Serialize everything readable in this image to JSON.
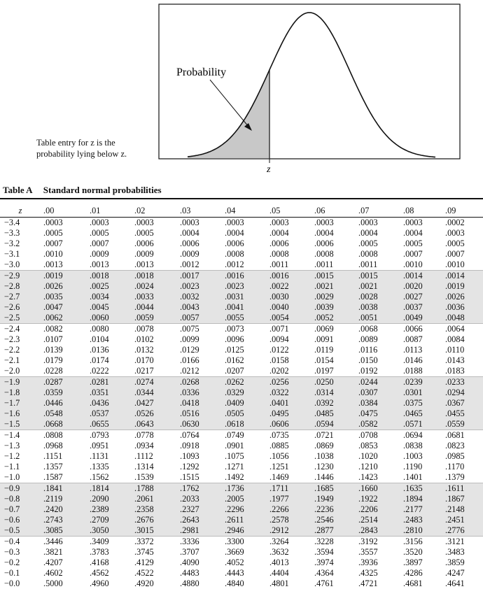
{
  "figure": {
    "probability_label": "Probability",
    "z_label": "z",
    "entry_note_line1": "Table entry for z is the",
    "entry_note_line2": "probability lying below z."
  },
  "table": {
    "number": "Table A",
    "title": "Standard normal probabilities",
    "row_header": "z",
    "columns": [
      ".00",
      ".01",
      ".02",
      ".03",
      ".04",
      ".05",
      ".06",
      ".07",
      ".08",
      ".09"
    ],
    "rows": [
      {
        "z": "−3.4",
        "v": [
          ".0003",
          ".0003",
          ".0003",
          ".0003",
          ".0003",
          ".0003",
          ".0003",
          ".0003",
          ".0003",
          ".0002"
        ]
      },
      {
        "z": "−3.3",
        "v": [
          ".0005",
          ".0005",
          ".0005",
          ".0004",
          ".0004",
          ".0004",
          ".0004",
          ".0004",
          ".0004",
          ".0003"
        ]
      },
      {
        "z": "−3.2",
        "v": [
          ".0007",
          ".0007",
          ".0006",
          ".0006",
          ".0006",
          ".0006",
          ".0006",
          ".0005",
          ".0005",
          ".0005"
        ]
      },
      {
        "z": "−3.1",
        "v": [
          ".0010",
          ".0009",
          ".0009",
          ".0009",
          ".0008",
          ".0008",
          ".0008",
          ".0008",
          ".0007",
          ".0007"
        ]
      },
      {
        "z": "−3.0",
        "v": [
          ".0013",
          ".0013",
          ".0013",
          ".0012",
          ".0012",
          ".0011",
          ".0011",
          ".0011",
          ".0010",
          ".0010"
        ]
      },
      {
        "z": "−2.9",
        "v": [
          ".0019",
          ".0018",
          ".0018",
          ".0017",
          ".0016",
          ".0016",
          ".0015",
          ".0015",
          ".0014",
          ".0014"
        ]
      },
      {
        "z": "−2.8",
        "v": [
          ".0026",
          ".0025",
          ".0024",
          ".0023",
          ".0023",
          ".0022",
          ".0021",
          ".0021",
          ".0020",
          ".0019"
        ]
      },
      {
        "z": "−2.7",
        "v": [
          ".0035",
          ".0034",
          ".0033",
          ".0032",
          ".0031",
          ".0030",
          ".0029",
          ".0028",
          ".0027",
          ".0026"
        ]
      },
      {
        "z": "−2.6",
        "v": [
          ".0047",
          ".0045",
          ".0044",
          ".0043",
          ".0041",
          ".0040",
          ".0039",
          ".0038",
          ".0037",
          ".0036"
        ]
      },
      {
        "z": "−2.5",
        "v": [
          ".0062",
          ".0060",
          ".0059",
          ".0057",
          ".0055",
          ".0054",
          ".0052",
          ".0051",
          ".0049",
          ".0048"
        ]
      },
      {
        "z": "−2.4",
        "v": [
          ".0082",
          ".0080",
          ".0078",
          ".0075",
          ".0073",
          ".0071",
          ".0069",
          ".0068",
          ".0066",
          ".0064"
        ]
      },
      {
        "z": "−2.3",
        "v": [
          ".0107",
          ".0104",
          ".0102",
          ".0099",
          ".0096",
          ".0094",
          ".0091",
          ".0089",
          ".0087",
          ".0084"
        ]
      },
      {
        "z": "−2.2",
        "v": [
          ".0139",
          ".0136",
          ".0132",
          ".0129",
          ".0125",
          ".0122",
          ".0119",
          ".0116",
          ".0113",
          ".0110"
        ]
      },
      {
        "z": "−2.1",
        "v": [
          ".0179",
          ".0174",
          ".0170",
          ".0166",
          ".0162",
          ".0158",
          ".0154",
          ".0150",
          ".0146",
          ".0143"
        ]
      },
      {
        "z": "−2.0",
        "v": [
          ".0228",
          ".0222",
          ".0217",
          ".0212",
          ".0207",
          ".0202",
          ".0197",
          ".0192",
          ".0188",
          ".0183"
        ]
      },
      {
        "z": "−1.9",
        "v": [
          ".0287",
          ".0281",
          ".0274",
          ".0268",
          ".0262",
          ".0256",
          ".0250",
          ".0244",
          ".0239",
          ".0233"
        ]
      },
      {
        "z": "−1.8",
        "v": [
          ".0359",
          ".0351",
          ".0344",
          ".0336",
          ".0329",
          ".0322",
          ".0314",
          ".0307",
          ".0301",
          ".0294"
        ]
      },
      {
        "z": "−1.7",
        "v": [
          ".0446",
          ".0436",
          ".0427",
          ".0418",
          ".0409",
          ".0401",
          ".0392",
          ".0384",
          ".0375",
          ".0367"
        ]
      },
      {
        "z": "−1.6",
        "v": [
          ".0548",
          ".0537",
          ".0526",
          ".0516",
          ".0505",
          ".0495",
          ".0485",
          ".0475",
          ".0465",
          ".0455"
        ]
      },
      {
        "z": "−1.5",
        "v": [
          ".0668",
          ".0655",
          ".0643",
          ".0630",
          ".0618",
          ".0606",
          ".0594",
          ".0582",
          ".0571",
          ".0559"
        ]
      },
      {
        "z": "−1.4",
        "v": [
          ".0808",
          ".0793",
          ".0778",
          ".0764",
          ".0749",
          ".0735",
          ".0721",
          ".0708",
          ".0694",
          ".0681"
        ]
      },
      {
        "z": "−1.3",
        "v": [
          ".0968",
          ".0951",
          ".0934",
          ".0918",
          ".0901",
          ".0885",
          ".0869",
          ".0853",
          ".0838",
          ".0823"
        ]
      },
      {
        "z": "−1.2",
        "v": [
          ".1151",
          ".1131",
          ".1112",
          ".1093",
          ".1075",
          ".1056",
          ".1038",
          ".1020",
          ".1003",
          ".0985"
        ]
      },
      {
        "z": "−1.1",
        "v": [
          ".1357",
          ".1335",
          ".1314",
          ".1292",
          ".1271",
          ".1251",
          ".1230",
          ".1210",
          ".1190",
          ".1170"
        ]
      },
      {
        "z": "−1.0",
        "v": [
          ".1587",
          ".1562",
          ".1539",
          ".1515",
          ".1492",
          ".1469",
          ".1446",
          ".1423",
          ".1401",
          ".1379"
        ]
      },
      {
        "z": "−0.9",
        "v": [
          ".1841",
          ".1814",
          ".1788",
          ".1762",
          ".1736",
          ".1711",
          ".1685",
          ".1660",
          ".1635",
          ".1611"
        ]
      },
      {
        "z": "−0.8",
        "v": [
          ".2119",
          ".2090",
          ".2061",
          ".2033",
          ".2005",
          ".1977",
          ".1949",
          ".1922",
          ".1894",
          ".1867"
        ]
      },
      {
        "z": "−0.7",
        "v": [
          ".2420",
          ".2389",
          ".2358",
          ".2327",
          ".2296",
          ".2266",
          ".2236",
          ".2206",
          ".2177",
          ".2148"
        ]
      },
      {
        "z": "−0.6",
        "v": [
          ".2743",
          ".2709",
          ".2676",
          ".2643",
          ".2611",
          ".2578",
          ".2546",
          ".2514",
          ".2483",
          ".2451"
        ]
      },
      {
        "z": "−0.5",
        "v": [
          ".3085",
          ".3050",
          ".3015",
          ".2981",
          ".2946",
          ".2912",
          ".2877",
          ".2843",
          ".2810",
          ".2776"
        ]
      },
      {
        "z": "−0.4",
        "v": [
          ".3446",
          ".3409",
          ".3372",
          ".3336",
          ".3300",
          ".3264",
          ".3228",
          ".3192",
          ".3156",
          ".3121"
        ]
      },
      {
        "z": "−0.3",
        "v": [
          ".3821",
          ".3783",
          ".3745",
          ".3707",
          ".3669",
          ".3632",
          ".3594",
          ".3557",
          ".3520",
          ".3483"
        ]
      },
      {
        "z": "−0.2",
        "v": [
          ".4207",
          ".4168",
          ".4129",
          ".4090",
          ".4052",
          ".4013",
          ".3974",
          ".3936",
          ".3897",
          ".3859"
        ]
      },
      {
        "z": "−0.1",
        "v": [
          ".4602",
          ".4562",
          ".4522",
          ".4483",
          ".4443",
          ".4404",
          ".4364",
          ".4325",
          ".4286",
          ".4247"
        ]
      },
      {
        "z": "−0.0",
        "v": [
          ".5000",
          ".4960",
          ".4920",
          ".4880",
          ".4840",
          ".4801",
          ".4761",
          ".4721",
          ".4681",
          ".4641"
        ]
      }
    ]
  }
}
